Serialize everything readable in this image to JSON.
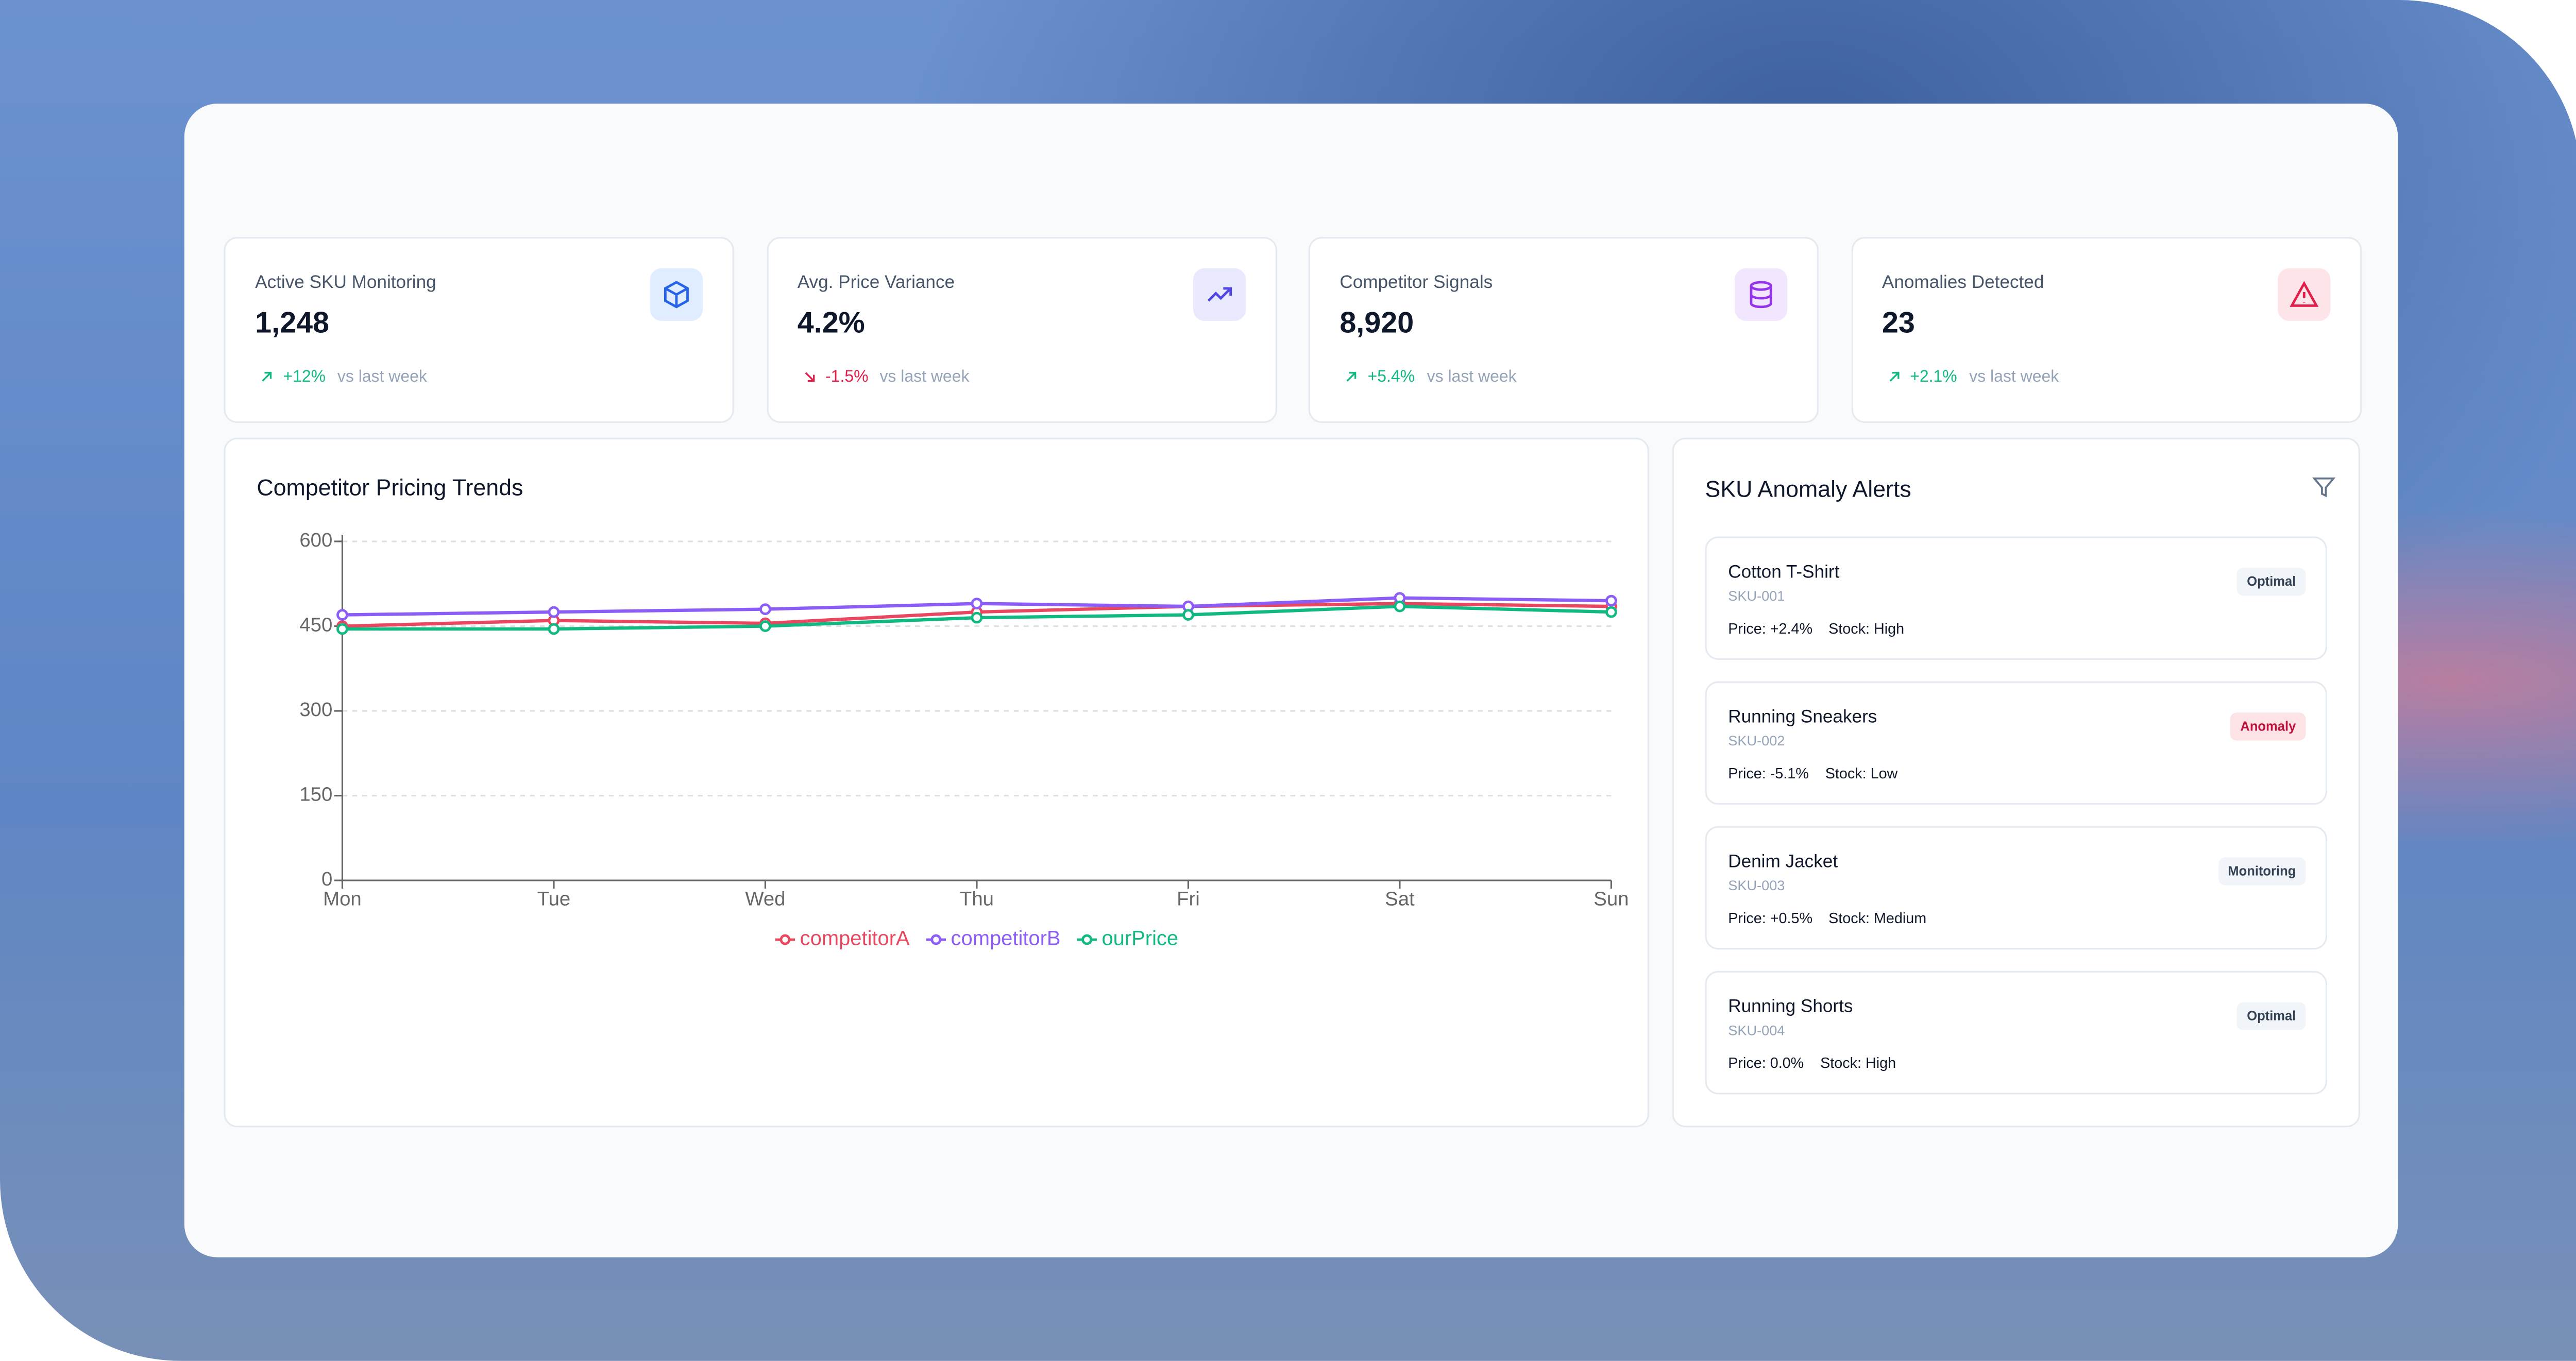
{
  "cards": [
    {
      "label": "Active SKU Monitoring",
      "value": "1,248",
      "change": "+12%",
      "comparison": "vs last week",
      "icon_color": "#2563eb",
      "icon_bg": "#e0ecff"
    },
    {
      "label": "Avg. Price Variance",
      "value": "4.2%",
      "change": "-1.5%",
      "comparison": "vs last week",
      "icon_color": "#4f46e5",
      "icon_bg": "#e8e9fd"
    },
    {
      "label": "Competitor Signals",
      "value": "8,920",
      "change": "+5.4%",
      "comparison": "vs last week",
      "icon_color": "#9333ea",
      "icon_bg": "#f1e6fd"
    },
    {
      "label": "Anomalies Detected",
      "value": "23",
      "change": "+2.1%",
      "comparison": "vs last week",
      "icon_color": "#e11d48",
      "icon_bg": "#fde4e8"
    }
  ],
  "chart": {
    "type": "line",
    "title": "Competitor Pricing Trends",
    "categories": [
      "Mon",
      "Tue",
      "Wed",
      "Thu",
      "Fri",
      "Sat",
      "Sun"
    ],
    "series": [
      {
        "name": "competitorA",
        "color": "#e8475f",
        "values": [
          450,
          460,
          455,
          475,
          485,
          490,
          485
        ]
      },
      {
        "name": "competitorB",
        "color": "#8b5cf6",
        "values": [
          470,
          475,
          480,
          490,
          485,
          500,
          495
        ]
      },
      {
        "name": "ourPrice",
        "color": "#10b981",
        "values": [
          445,
          445,
          450,
          465,
          470,
          485,
          475
        ]
      }
    ],
    "ylim": [
      0,
      600
    ],
    "yticks": [
      0,
      150,
      300,
      450,
      600
    ],
    "grid": true,
    "legend": "bottom"
  },
  "alerts": {
    "title": "SKU Anomaly Alerts",
    "items": [
      {
        "name": "Cotton T-Shirt",
        "sku": "SKU-001",
        "price": "Price: +2.4%",
        "stock": "Stock: High",
        "status": "Optimal",
        "status_color": "#334155",
        "status_bg": "#f1f5f9"
      },
      {
        "name": "Running Sneakers",
        "sku": "SKU-002",
        "price": "Price: -5.1%",
        "stock": "Stock: Low",
        "status": "Anomaly",
        "status_color": "#be123c",
        "status_bg": "#fde2e6"
      },
      {
        "name": "Denim Jacket",
        "sku": "SKU-003",
        "price": "Price: +0.5%",
        "stock": "Stock: Medium",
        "status": "Monitoring",
        "status_color": "#334155",
        "status_bg": "#f1f5f9"
      },
      {
        "name": "Running Shorts",
        "sku": "SKU-004",
        "price": "Price: 0.0%",
        "stock": "Stock: High",
        "status": "Optimal",
        "status_color": "#334155",
        "status_bg": "#f1f5f9"
      }
    ]
  }
}
